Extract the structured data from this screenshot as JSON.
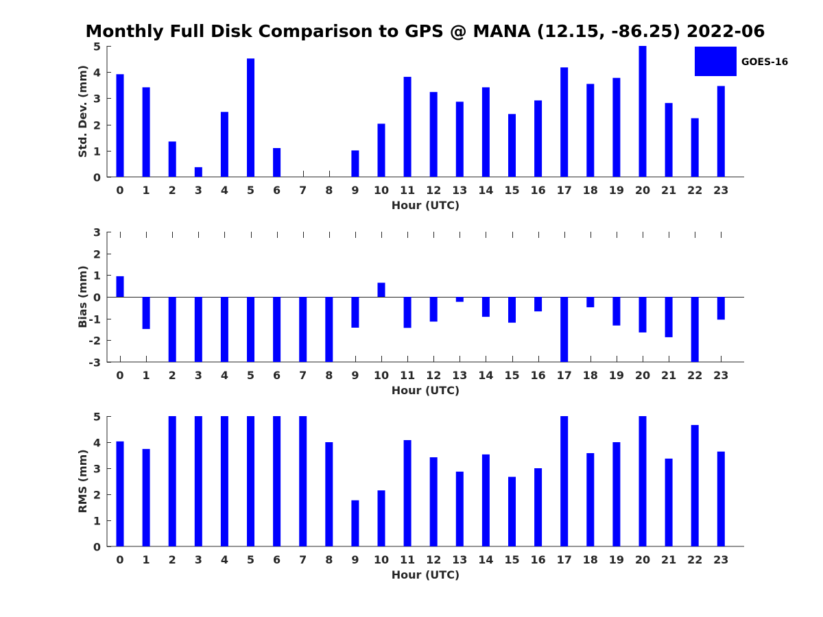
{
  "figure": {
    "title": "Monthly Full Disk Comparison to GPS @ MANA (12.15, -86.25) 2022-06",
    "legend": {
      "label": "GOES-16",
      "color": "#0000ff"
    }
  },
  "chart_data": [
    {
      "type": "bar",
      "name": "std-dev",
      "title": "",
      "xlabel": "Hour (UTC)",
      "ylabel": "Std. Dev. (mm)",
      "ylim": [
        0,
        5
      ],
      "yticks": [
        0,
        1,
        2,
        3,
        4,
        5
      ],
      "categories": [
        "0",
        "1",
        "2",
        "3",
        "4",
        "5",
        "6",
        "7",
        "8",
        "9",
        "10",
        "11",
        "12",
        "13",
        "14",
        "15",
        "16",
        "17",
        "18",
        "19",
        "20",
        "21",
        "22",
        "23"
      ],
      "series": [
        {
          "name": "GOES-16",
          "color": "#0000ff",
          "values": [
            3.92,
            3.42,
            1.35,
            0.37,
            2.48,
            4.52,
            1.1,
            0.0,
            0.0,
            1.01,
            2.03,
            3.82,
            3.24,
            2.87,
            3.42,
            2.4,
            2.92,
            4.18,
            3.55,
            3.78,
            5.0,
            2.82,
            2.24,
            3.47
          ]
        }
      ]
    },
    {
      "type": "bar",
      "name": "bias",
      "title": "",
      "xlabel": "Hour (UTC)",
      "ylabel": "Bias (mm)",
      "ylim": [
        -3,
        3
      ],
      "yticks": [
        -3,
        -2,
        -1,
        0,
        1,
        2,
        3
      ],
      "categories": [
        "0",
        "1",
        "2",
        "3",
        "4",
        "5",
        "6",
        "7",
        "8",
        "9",
        "10",
        "11",
        "12",
        "13",
        "14",
        "15",
        "16",
        "17",
        "18",
        "19",
        "20",
        "21",
        "22",
        "23"
      ],
      "series": [
        {
          "name": "GOES-16",
          "color": "#0000ff",
          "values": [
            0.95,
            -1.48,
            -3.0,
            -3.0,
            -3.0,
            -3.0,
            -3.0,
            -3.0,
            -3.0,
            -1.42,
            0.65,
            -1.43,
            -1.14,
            -0.23,
            -0.92,
            -1.19,
            -0.67,
            -3.0,
            -0.48,
            -1.32,
            -1.64,
            -1.86,
            -3.0,
            -1.05
          ]
        }
      ]
    },
    {
      "type": "bar",
      "name": "rms",
      "title": "",
      "xlabel": "Hour (UTC)",
      "ylabel": "RMS (mm)",
      "ylim": [
        0,
        5
      ],
      "yticks": [
        0,
        1,
        2,
        3,
        4,
        5
      ],
      "categories": [
        "0",
        "1",
        "2",
        "3",
        "4",
        "5",
        "6",
        "7",
        "8",
        "9",
        "10",
        "11",
        "12",
        "13",
        "14",
        "15",
        "16",
        "17",
        "18",
        "19",
        "20",
        "21",
        "22",
        "23"
      ],
      "series": [
        {
          "name": "GOES-16",
          "color": "#0000ff",
          "values": [
            4.03,
            3.74,
            5.0,
            5.0,
            5.0,
            5.0,
            5.0,
            5.0,
            4.0,
            1.77,
            2.15,
            4.08,
            3.42,
            2.87,
            3.53,
            2.67,
            3.0,
            5.0,
            3.58,
            4.0,
            5.0,
            3.37,
            4.66,
            3.64
          ]
        }
      ]
    }
  ]
}
